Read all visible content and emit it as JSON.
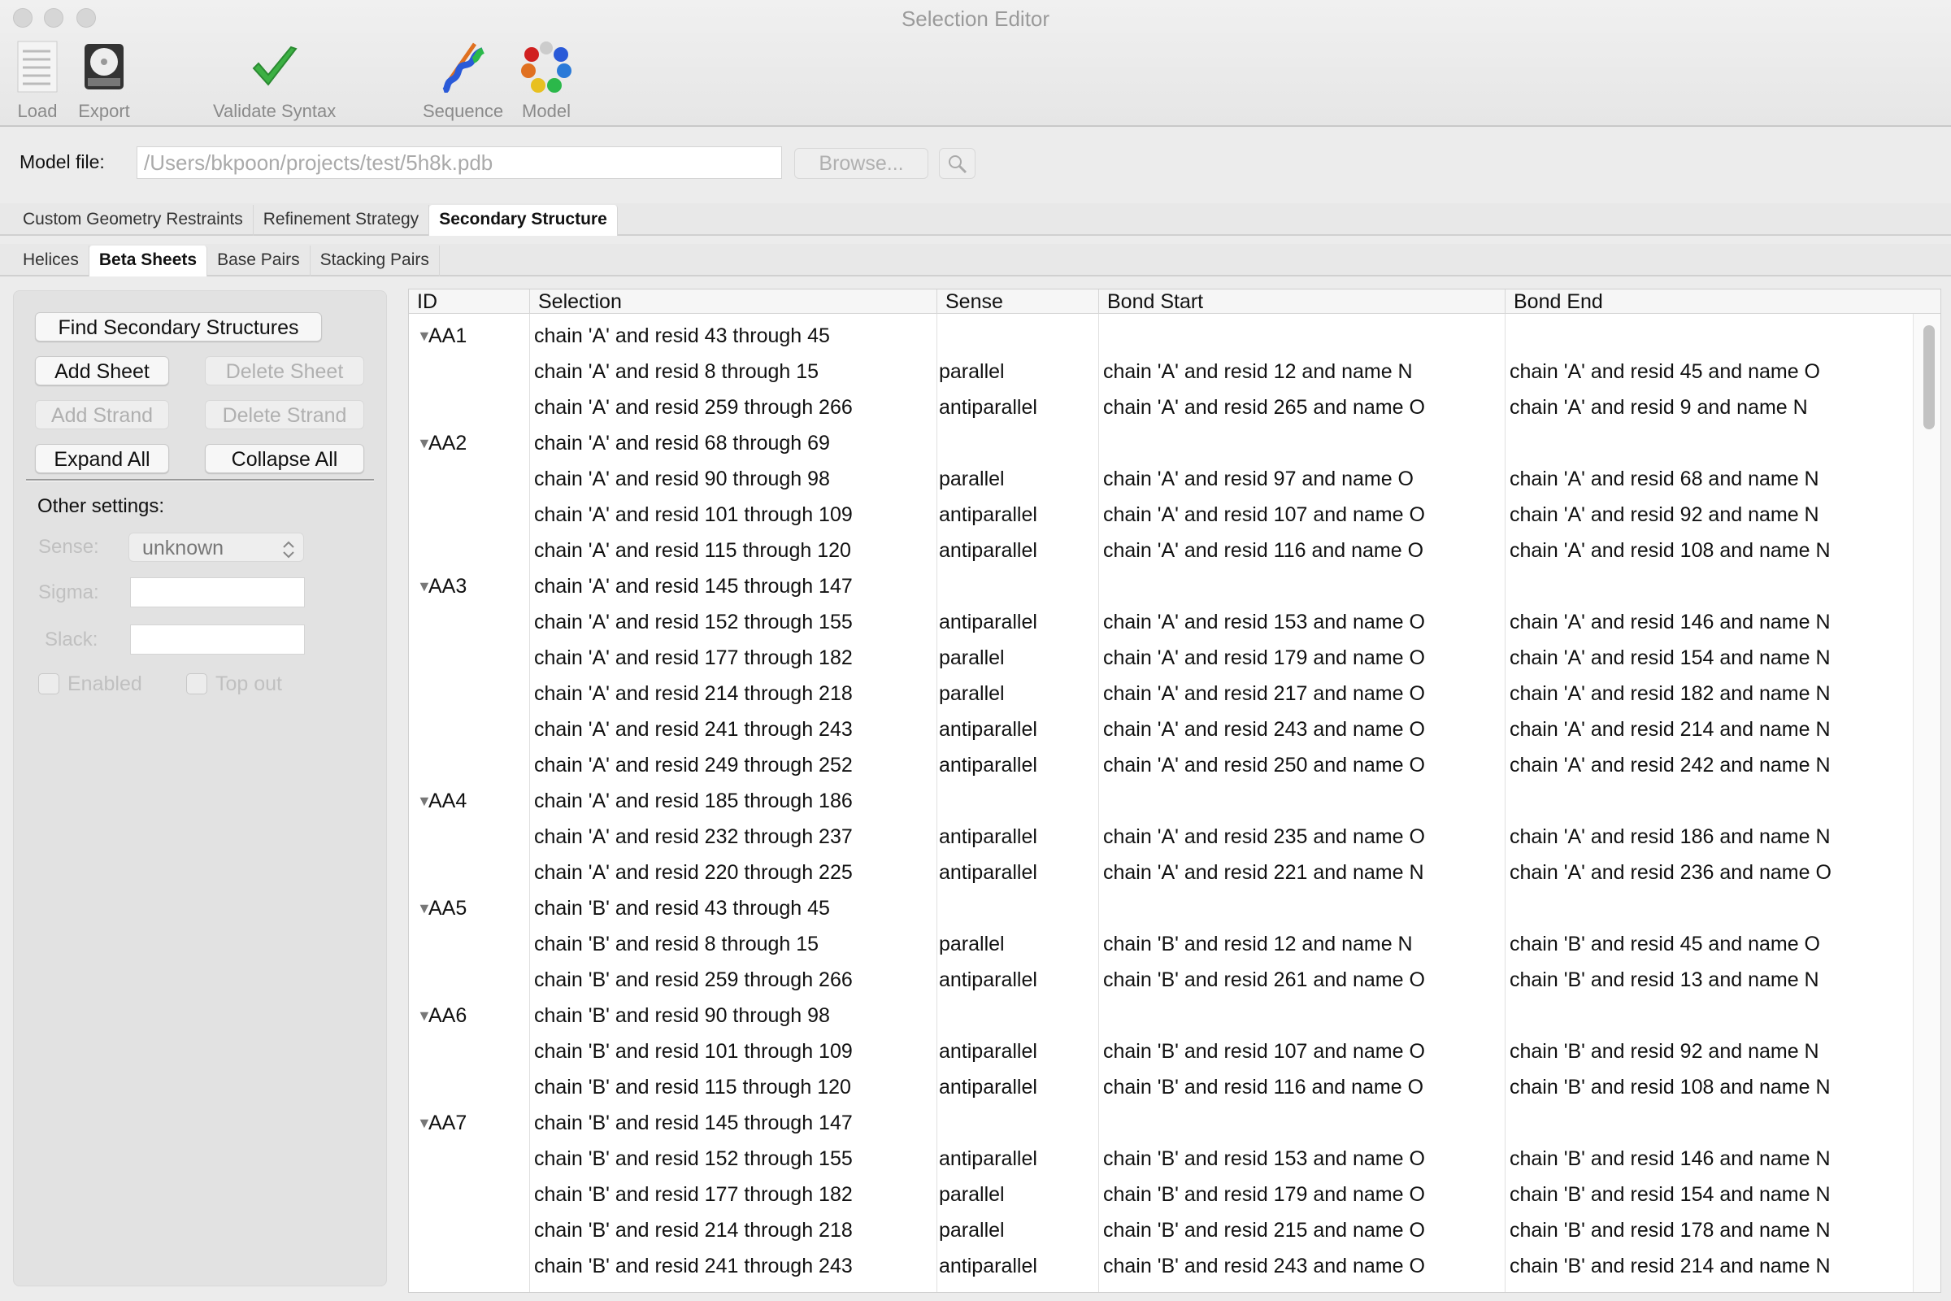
{
  "window": {
    "title": "Selection Editor"
  },
  "toolbar": {
    "load": "Load",
    "export": "Export",
    "validate": "Validate Syntax",
    "sequence": "Sequence",
    "model": "Model"
  },
  "model_file": {
    "label": "Model file:",
    "value": "/Users/bkpoon/projects/test/5h8k.pdb",
    "browse": "Browse..."
  },
  "tabs": [
    "Custom Geometry Restraints",
    "Refinement Strategy",
    "Secondary Structure"
  ],
  "active_tab": "Secondary Structure",
  "subtabs": [
    "Helices",
    "Beta Sheets",
    "Base Pairs",
    "Stacking Pairs"
  ],
  "active_subtab": "Beta Sheets",
  "panel": {
    "find": "Find Secondary Structures",
    "add_sheet": "Add Sheet",
    "delete_sheet": "Delete Sheet",
    "add_strand": "Add Strand",
    "delete_strand": "Delete Strand",
    "expand_all": "Expand All",
    "collapse_all": "Collapse All",
    "other_settings": "Other settings:",
    "sense_label": "Sense:",
    "sense_value": "unknown",
    "sigma_label": "Sigma:",
    "sigma_value": "",
    "slack_label": "Slack:",
    "slack_value": "",
    "enabled": "Enabled",
    "top_out": "Top out",
    "enabled_checked": false,
    "top_out_checked": false
  },
  "table": {
    "columns": [
      "ID",
      "Selection",
      "Sense",
      "Bond Start",
      "Bond End"
    ],
    "sheets": [
      {
        "id": "AA1",
        "strands": [
          [
            "chain 'A' and resid 43 through 45",
            "",
            "",
            ""
          ],
          [
            "chain 'A' and resid 8 through 15",
            "parallel",
            "chain 'A' and resid 12 and name N",
            "chain 'A' and resid 45 and name O"
          ],
          [
            "chain 'A' and resid 259 through 266",
            "antiparallel",
            "chain 'A' and resid 265 and name O",
            "chain 'A' and resid 9 and name N"
          ]
        ]
      },
      {
        "id": "AA2",
        "strands": [
          [
            "chain 'A' and resid 68 through 69",
            "",
            "",
            ""
          ],
          [
            "chain 'A' and resid 90 through 98",
            "parallel",
            "chain 'A' and resid 97 and name O",
            "chain 'A' and resid 68 and name N"
          ],
          [
            "chain 'A' and resid 101 through 109",
            "antiparallel",
            "chain 'A' and resid 107 and name O",
            "chain 'A' and resid 92 and name N"
          ],
          [
            "chain 'A' and resid 115 through 120",
            "antiparallel",
            "chain 'A' and resid 116 and name O",
            "chain 'A' and resid 108 and name N"
          ]
        ]
      },
      {
        "id": "AA3",
        "strands": [
          [
            "chain 'A' and resid 145 through 147",
            "",
            "",
            ""
          ],
          [
            "chain 'A' and resid 152 through 155",
            "antiparallel",
            "chain 'A' and resid 153 and name O",
            "chain 'A' and resid 146 and name N"
          ],
          [
            "chain 'A' and resid 177 through 182",
            "parallel",
            "chain 'A' and resid 179 and name O",
            "chain 'A' and resid 154 and name N"
          ],
          [
            "chain 'A' and resid 214 through 218",
            "parallel",
            "chain 'A' and resid 217 and name O",
            "chain 'A' and resid 182 and name N"
          ],
          [
            "chain 'A' and resid 241 through 243",
            "antiparallel",
            "chain 'A' and resid 243 and name O",
            "chain 'A' and resid 214 and name N"
          ],
          [
            "chain 'A' and resid 249 through 252",
            "antiparallel",
            "chain 'A' and resid 250 and name O",
            "chain 'A' and resid 242 and name N"
          ]
        ]
      },
      {
        "id": "AA4",
        "strands": [
          [
            "chain 'A' and resid 185 through 186",
            "",
            "",
            ""
          ],
          [
            "chain 'A' and resid 232 through 237",
            "antiparallel",
            "chain 'A' and resid 235 and name O",
            "chain 'A' and resid 186 and name N"
          ],
          [
            "chain 'A' and resid 220 through 225",
            "antiparallel",
            "chain 'A' and resid 221 and name N",
            "chain 'A' and resid 236 and name O"
          ]
        ]
      },
      {
        "id": "AA5",
        "strands": [
          [
            "chain 'B' and resid 43 through 45",
            "",
            "",
            ""
          ],
          [
            "chain 'B' and resid 8 through 15",
            "parallel",
            "chain 'B' and resid 12 and name N",
            "chain 'B' and resid 45 and name O"
          ],
          [
            "chain 'B' and resid 259 through 266",
            "antiparallel",
            "chain 'B' and resid 261 and name O",
            "chain 'B' and resid 13 and name N"
          ]
        ]
      },
      {
        "id": "AA6",
        "strands": [
          [
            "chain 'B' and resid 90 through 98",
            "",
            "",
            ""
          ],
          [
            "chain 'B' and resid 101 through 109",
            "antiparallel",
            "chain 'B' and resid 107 and name O",
            "chain 'B' and resid 92 and name N"
          ],
          [
            "chain 'B' and resid 115 through 120",
            "antiparallel",
            "chain 'B' and resid 116 and name O",
            "chain 'B' and resid 108 and name N"
          ]
        ]
      },
      {
        "id": "AA7",
        "strands": [
          [
            "chain 'B' and resid 145 through 147",
            "",
            "",
            ""
          ],
          [
            "chain 'B' and resid 152 through 155",
            "antiparallel",
            "chain 'B' and resid 153 and name O",
            "chain 'B' and resid 146 and name N"
          ],
          [
            "chain 'B' and resid 177 through 182",
            "parallel",
            "chain 'B' and resid 179 and name O",
            "chain 'B' and resid 154 and name N"
          ],
          [
            "chain 'B' and resid 214 through 218",
            "parallel",
            "chain 'B' and resid 215 and name O",
            "chain 'B' and resid 178 and name N"
          ],
          [
            "chain 'B' and resid 241 through 243",
            "antiparallel",
            "chain 'B' and resid 243 and name O",
            "chain 'B' and resid 214 and name N"
          ]
        ]
      }
    ]
  },
  "colors": {
    "validate_check": "#3cb043",
    "panel_bg": "#e2e2e2",
    "disabled_text": "#b0b0b0"
  }
}
